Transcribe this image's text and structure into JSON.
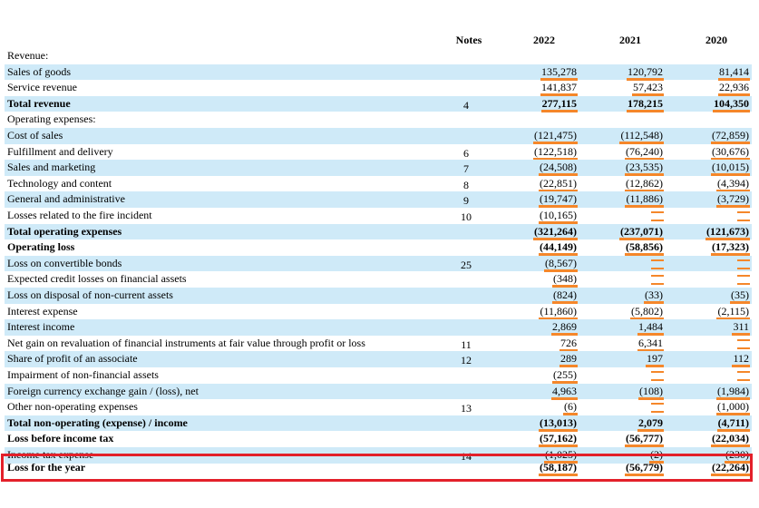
{
  "header": {
    "notes": "Notes",
    "years": [
      "2022",
      "2021",
      "2020"
    ]
  },
  "rows": [
    {
      "label": "Revenue:",
      "note": "",
      "values": [
        "",
        "",
        ""
      ],
      "bold": false
    },
    {
      "label": "Sales of goods",
      "note": "",
      "values": [
        "135,278",
        "120,792",
        "81,414"
      ],
      "bold": false
    },
    {
      "label": "Service revenue",
      "note": "",
      "values": [
        "141,837",
        "57,423",
        "22,936"
      ],
      "bold": false
    },
    {
      "label": "Total revenue",
      "note": "4",
      "values": [
        "277,115",
        "178,215",
        "104,350"
      ],
      "bold": true
    },
    {
      "label": "Operating expenses:",
      "note": "",
      "values": [
        "",
        "",
        ""
      ],
      "bold": false
    },
    {
      "label": "Cost of sales",
      "note": "",
      "values": [
        "(121,475)",
        "(112,548)",
        "(72,859)"
      ],
      "bold": false
    },
    {
      "label": "Fulfillment and delivery",
      "note": "6",
      "values": [
        "(122,518)",
        "(76,240)",
        "(30,676)"
      ],
      "bold": false
    },
    {
      "label": "Sales and marketing",
      "note": "7",
      "values": [
        "(24,508)",
        "(23,535)",
        "(10,015)"
      ],
      "bold": false
    },
    {
      "label": "Technology and content",
      "note": "8",
      "values": [
        "(22,851)",
        "(12,862)",
        "(4,394)"
      ],
      "bold": false
    },
    {
      "label": "General and administrative",
      "note": "9",
      "values": [
        "(19,747)",
        "(11,886)",
        "(3,729)"
      ],
      "bold": false
    },
    {
      "label": "Losses related to the fire incident",
      "note": "10",
      "values": [
        "(10,165)",
        "—",
        "—"
      ],
      "bold": false
    },
    {
      "label": "Total operating expenses",
      "note": "",
      "values": [
        "(321,264)",
        "(237,071)",
        "(121,673)"
      ],
      "bold": true
    },
    {
      "label": "Operating loss",
      "note": "",
      "values": [
        "(44,149)",
        "(58,856)",
        "(17,323)"
      ],
      "bold": true
    },
    {
      "label": "Loss on convertible bonds",
      "note": "25",
      "values": [
        "(8,567)",
        "—",
        "—"
      ],
      "bold": false
    },
    {
      "label": "Expected credit losses on financial assets",
      "note": "",
      "values": [
        "(348)",
        "—",
        "—"
      ],
      "bold": false
    },
    {
      "label": "Loss on disposal of non-current assets",
      "note": "",
      "values": [
        "(824)",
        "(33)",
        "(35)"
      ],
      "bold": false
    },
    {
      "label": "Interest expense",
      "note": "",
      "values": [
        "(11,860)",
        "(5,802)",
        "(2,115)"
      ],
      "bold": false
    },
    {
      "label": "Interest income",
      "note": "",
      "values": [
        "2,869",
        "1,484",
        "311"
      ],
      "bold": false
    },
    {
      "label": "Net gain on revaluation of financial instruments at fair value through profit or loss",
      "note": "11",
      "values": [
        "726",
        "6,341",
        "—"
      ],
      "bold": false
    },
    {
      "label": "Share of profit of an associate",
      "note": "12",
      "values": [
        "289",
        "197",
        "112"
      ],
      "bold": false
    },
    {
      "label": "Impairment of non-financial assets",
      "note": "",
      "values": [
        "(255)",
        "—",
        "—"
      ],
      "bold": false
    },
    {
      "label": "Foreign currency exchange gain / (loss), net",
      "note": "",
      "values": [
        "4,963",
        "(108)",
        "(1,984)"
      ],
      "bold": false
    },
    {
      "label": "Other non-operating expenses",
      "note": "13",
      "values": [
        "(6)",
        "—",
        "(1,000)"
      ],
      "bold": false
    },
    {
      "label": "Total non-operating (expense) / income",
      "note": "",
      "values": [
        "(13,013)",
        "2,079",
        "(4,711)"
      ],
      "bold": true
    },
    {
      "label": "Loss before income tax",
      "note": "",
      "values": [
        "(57,162)",
        "(56,777)",
        "(22,034)"
      ],
      "bold": true
    },
    {
      "label": "Income tax expense",
      "note": "14",
      "values": [
        "(1,025)",
        "(2)",
        "(230)"
      ],
      "bold": false
    },
    {
      "label": "Loss for the year",
      "note": "",
      "values": [
        "(58,187)",
        "(56,779)",
        "(22,264)"
      ],
      "bold": true
    }
  ],
  "colors": {
    "shade": "#cfeaf8",
    "highlight": "#f5872a",
    "frame": "#e3202a"
  }
}
